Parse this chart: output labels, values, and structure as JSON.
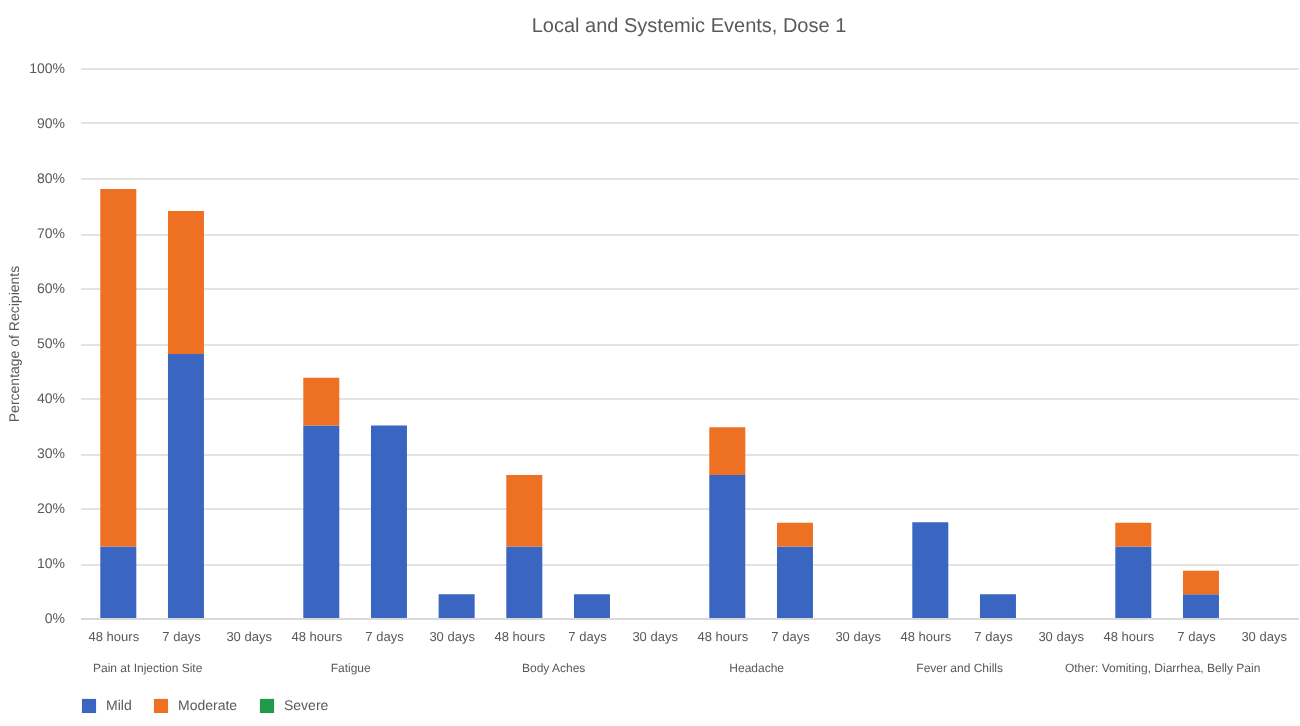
{
  "chart_data": {
    "type": "bar",
    "title": "Local and Systemic Events, Dose 1",
    "ylabel": "Percentage of Recipients",
    "categories": [
      "48 hours",
      "7 days",
      "30 days",
      "48 hours",
      "7 days",
      "30 days",
      "48 hours",
      "7 days",
      "30 days",
      "48 hours",
      "7 days",
      "30 days",
      "48 hours",
      "7 days",
      "30 days",
      "48 hours",
      "7 days",
      "30 days"
    ],
    "annotations": [
      "Pain at Injection Site",
      "Fatigue",
      "Body Aches",
      "Headache",
      "Fever and Chills",
      "Other: Vomiting, Diarrhea, Belly Pain"
    ],
    "stacked": true,
    "series": [
      {
        "name": "Mild",
        "color": "#3a66c2",
        "values": [
          13,
          48,
          0,
          35,
          35,
          4.3,
          13,
          4.3,
          0,
          26,
          13,
          0,
          17.4,
          4.3,
          0,
          13,
          4.3,
          0
        ]
      },
      {
        "name": "Moderate",
        "color": "#ed7023",
        "values": [
          65,
          26,
          0,
          8.7,
          0,
          0,
          13,
          0,
          0,
          8.7,
          4.3,
          0,
          0,
          0,
          0,
          4.3,
          4.3,
          0
        ]
      },
      {
        "name": "Severe",
        "color": "#1f9a4a",
        "values": [
          0,
          0,
          0,
          0,
          0,
          0,
          0,
          0,
          0,
          0,
          0,
          0,
          0,
          0,
          0,
          0,
          0,
          0
        ]
      }
    ],
    "ylim": [
      0,
      100
    ],
    "yticks": [
      {
        "value": 0,
        "label": "0%"
      },
      {
        "value": 10,
        "label": "10%"
      },
      {
        "value": 20,
        "label": "20%"
      },
      {
        "value": 30,
        "label": "30%"
      },
      {
        "value": 40,
        "label": "40%"
      },
      {
        "value": 50,
        "label": "50%"
      },
      {
        "value": 60,
        "label": "60%"
      },
      {
        "value": 70,
        "label": "70%"
      },
      {
        "value": 80,
        "label": "80%"
      },
      {
        "value": 90,
        "label": "90%"
      },
      {
        "value": 100,
        "label": "100%"
      }
    ],
    "grid": "y",
    "legend": "bottom"
  }
}
